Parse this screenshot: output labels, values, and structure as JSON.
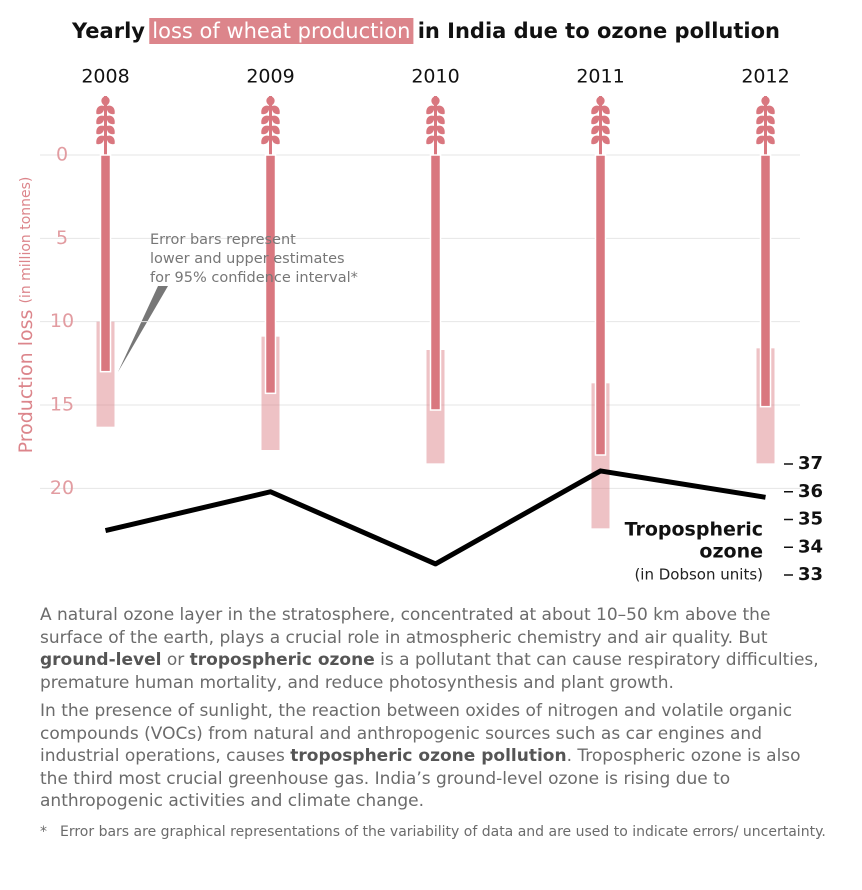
{
  "chart_data": {
    "type": "bar",
    "title_parts": [
      "Yearly ",
      "loss of wheat production",
      " in India due to ozone pollution"
    ],
    "ylabel": "Production loss",
    "ylabel_unit": "(in million tonnes)",
    "categories": [
      "2008",
      "2009",
      "2010",
      "2011",
      "2012"
    ],
    "values": [
      13.0,
      14.3,
      15.3,
      18.0,
      15.1
    ],
    "error_low": [
      10.0,
      10.9,
      11.7,
      13.7,
      11.6
    ],
    "error_high": [
      16.3,
      17.7,
      18.5,
      22.4,
      18.5
    ],
    "color": "#d9777f",
    "highlight_color": "#dc858b",
    "ylim": [
      0,
      24
    ],
    "yticks": [
      0,
      5,
      10,
      15,
      20
    ],
    "y_inverted": true,
    "grid": true,
    "annotation": [
      "Error bars represent",
      "lower and upper estimates",
      "for 95% confidence interval*"
    ],
    "ozone": {
      "label": [
        "Tropospheric",
        "ozone"
      ],
      "unit": "(in Dobson units)",
      "color": "#000000",
      "values": [
        34.6,
        36.0,
        33.4,
        36.75,
        35.8
      ],
      "axis": "y2"
    },
    "y2lim": [
      33,
      37
    ],
    "y2ticks": [
      37,
      36,
      35,
      34,
      33
    ]
  },
  "notes": {
    "paragraphs": [
      [
        {
          "text": "A natural ozone layer in the stratosphere, concentrated at about 10–50 km above the surface of the earth, plays a crucial role in atmospheric chemistry and air quality. But "
        },
        {
          "text": "ground-level",
          "bold": true
        },
        {
          "text": " or "
        },
        {
          "text": "tropospheric ozone",
          "bold": true
        },
        {
          "text": " is a pollutant that can cause respiratory difficulties, premature human mortality, and reduce photosynthesis and plant growth."
        }
      ],
      [
        {
          "text": "In the presence of sunlight, the reaction between oxides of nitrogen and volatile organic compounds (VOCs) from natural and anthropogenic sources such as car engines and industrial operations, causes "
        },
        {
          "text": "tropospheric ozone pollution",
          "bold": true
        },
        {
          "text": ". Tropospheric ozone is also the third most crucial greenhouse gas. India’s ground-level ozone is rising due to anthropogenic activities and climate change."
        }
      ]
    ],
    "footnote_marker": "*",
    "footnote": "Error bars are graphical representations of the variability of data and are used to indicate errors/ uncertainty."
  }
}
